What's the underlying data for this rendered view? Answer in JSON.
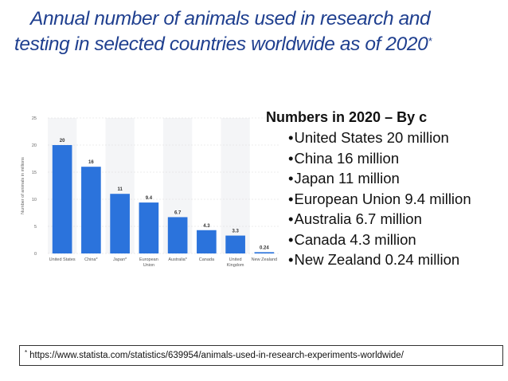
{
  "title": {
    "line1": "Annual number of animals used in research and",
    "line2": "testing in selected countries worldwide as of 2020",
    "marker": "*"
  },
  "list": {
    "heading": "Numbers in 2020 – By c",
    "items": [
      "United States 20 million",
      "China 16 million",
      "Japan 11 million",
      "European Union 9.4 million",
      "Australia 6.7 million",
      "Canada 4.3 million",
      "New Zealand 0.24 million"
    ]
  },
  "source": {
    "marker": "*",
    "text": "https://www.statista.com/statistics/639954/animals-used-in-research-experiments-worldwide/"
  },
  "chart_data": {
    "type": "bar",
    "categories": [
      "United States",
      "China*",
      "Japan*",
      "European Union",
      "Australia*",
      "Canada",
      "United Kingdom",
      "New Zealand"
    ],
    "category_lines": [
      [
        "United States"
      ],
      [
        "China*"
      ],
      [
        "Japan*"
      ],
      [
        "European",
        "Union"
      ],
      [
        "Australia*"
      ],
      [
        "Canada"
      ],
      [
        "United",
        "Kingdom"
      ],
      [
        "New Zealand"
      ]
    ],
    "values": [
      20,
      16,
      11,
      9.4,
      6.7,
      4.3,
      3.3,
      0.24
    ],
    "value_labels": [
      "20",
      "16",
      "11",
      "9.4",
      "6.7",
      "4.3",
      "3.3",
      "0.24"
    ],
    "ylabel": "Number of animals in millions",
    "yticks": [
      0,
      5,
      10,
      15,
      20,
      25
    ],
    "ylim": [
      0,
      25
    ],
    "grid": true,
    "bar_color": "#2b73dc"
  }
}
